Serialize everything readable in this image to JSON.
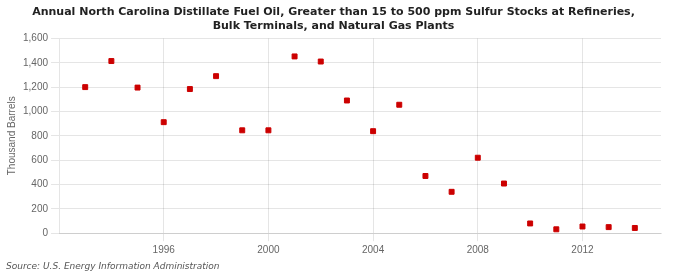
{
  "chart_data": {
    "type": "scatter",
    "title": "Annual North Carolina Distillate Fuel Oil, Greater than 15 to 500 ppm Sulfur Stocks at Refineries,\nBulk Terminals, and Natural Gas Plants",
    "ylabel": "Thousand Barrels",
    "annotations": [
      "Source: U.S. Energy Information Administration"
    ],
    "x": [
      1993,
      1994,
      1995,
      1996,
      1997,
      1998,
      1999,
      2000,
      2001,
      2002,
      2003,
      2004,
      2005,
      2006,
      2007,
      2008,
      2009,
      2010,
      2011,
      2012,
      2013,
      2014
    ],
    "values": [
      1200,
      1414,
      1196,
      912,
      1184,
      1290,
      845,
      845,
      1452,
      1410,
      1090,
      838,
      1055,
      470,
      340,
      620,
      408,
      80,
      32,
      55,
      50,
      43
    ],
    "color": "#cc0000",
    "marker": "square",
    "xlim": [
      1992.0,
      2015.0
    ],
    "xticks": [
      1996,
      2000,
      2004,
      2008,
      2012
    ],
    "ylim": [
      0,
      1600
    ],
    "yticks": [
      0,
      200,
      400,
      600,
      800,
      {
        "value": 1000,
        "label": "1,000"
      },
      {
        "value": 1200,
        "label": "1,200"
      },
      {
        "value": 1400,
        "label": "1,400"
      },
      {
        "value": 1600,
        "label": "1,600"
      }
    ],
    "grid": true
  }
}
